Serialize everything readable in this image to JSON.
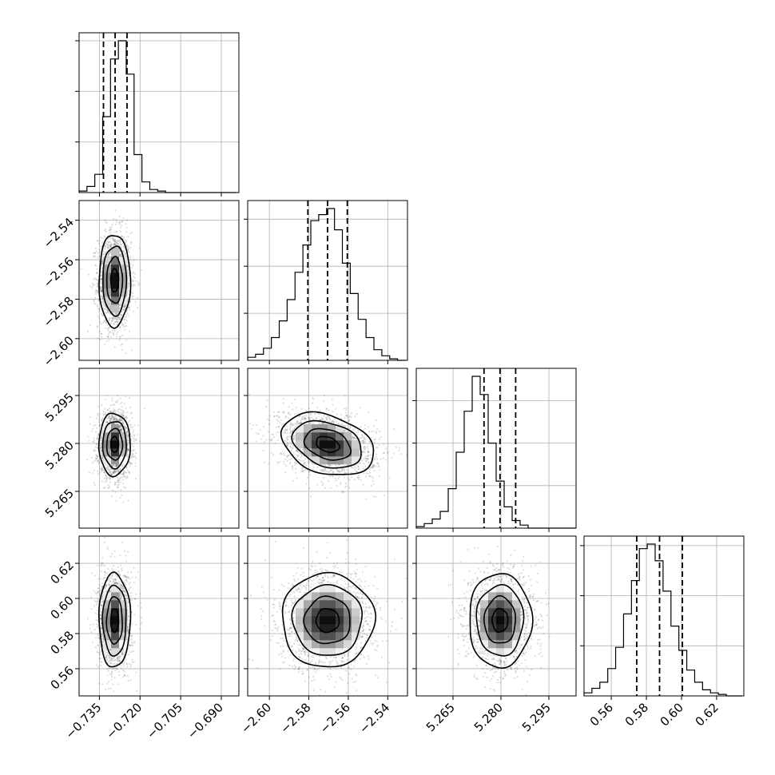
{
  "chart_data": {
    "type": "corner",
    "title": "",
    "grid": true,
    "parameters": [
      {
        "index": 0,
        "range": [
          -0.7425,
          -0.6835
        ],
        "ticks": [
          {
            "v": -0.735,
            "label": "−0.735"
          },
          {
            "v": -0.72,
            "label": "−0.720"
          },
          {
            "v": -0.705,
            "label": "−0.705"
          },
          {
            "v": -0.69,
            "label": "−0.690"
          }
        ],
        "quantiles": [
          -0.7335,
          -0.7292,
          -0.7248
        ],
        "hist": {
          "start": -0.7425,
          "step": 0.0029,
          "counts": [
            1,
            4,
            12,
            50,
            88,
            100,
            78,
            25,
            7,
            2,
            1,
            0,
            0,
            0,
            0,
            0,
            0,
            0,
            0,
            0
          ]
        },
        "hist_ticks": [
          0.333,
          0.667,
          1.0
        ]
      },
      {
        "index": 1,
        "range": [
          -2.611,
          -2.53
        ],
        "ticks": [
          {
            "v": -2.6,
            "label": "−2.60"
          },
          {
            "v": -2.58,
            "label": "−2.58"
          },
          {
            "v": -2.56,
            "label": "−2.56"
          },
          {
            "v": -2.54,
            "label": "−2.54"
          }
        ],
        "quantiles": [
          -2.5805,
          -2.5705,
          -2.5605
        ],
        "hist": {
          "start": -2.611,
          "step": 0.004,
          "counts": [
            2,
            4,
            8,
            15,
            26,
            40,
            58,
            76,
            92,
            96,
            100,
            86,
            64,
            44,
            27,
            15,
            7,
            3,
            1,
            0
          ]
        },
        "hist_ticks": [
          0.31,
          0.62,
          0.93
        ]
      },
      {
        "index": 2,
        "range": [
          5.2535,
          5.3035
        ],
        "ticks": [
          {
            "v": 5.265,
            "label": "5.265"
          },
          {
            "v": 5.28,
            "label": "5.280"
          },
          {
            "v": 5.295,
            "label": "5.295"
          }
        ],
        "quantiles": [
          5.2747,
          5.2797,
          5.2846
        ],
        "hist": {
          "start": 5.2535,
          "step": 0.0025,
          "counts": [
            1,
            3,
            6,
            11,
            26,
            50,
            77,
            100,
            88,
            56,
            31,
            14,
            5,
            2,
            0,
            0,
            0,
            0,
            0,
            0
          ]
        },
        "hist_ticks": [
          0.28,
          0.56,
          0.84
        ]
      },
      {
        "index": 3,
        "range": [
          0.5445,
          0.6355
        ],
        "ticks": [
          {
            "v": 0.56,
            "label": "0.56"
          },
          {
            "v": 0.58,
            "label": "0.58"
          },
          {
            "v": 0.6,
            "label": "0.60"
          },
          {
            "v": 0.62,
            "label": "0.62"
          }
        ],
        "quantiles": [
          0.5745,
          0.5875,
          0.6005
        ],
        "hist": {
          "start": 0.5445,
          "step": 0.0045,
          "counts": [
            2,
            5,
            9,
            18,
            32,
            54,
            76,
            97,
            100,
            89,
            69,
            46,
            30,
            17,
            9,
            4,
            2,
            1,
            0,
            0
          ]
        },
        "hist_ticks": [
          0.33,
          0.66,
          0.99
        ]
      }
    ],
    "pairs": [
      {
        "x": 0,
        "y": 1,
        "mean": [
          -0.7294,
          -2.5705
        ],
        "sd": [
          0.0029,
          0.0117
        ],
        "rho": 0.0
      },
      {
        "x": 0,
        "y": 2,
        "mean": [
          -0.7294,
          5.2797
        ],
        "sd": [
          0.0029,
          0.0049
        ],
        "rho": 0.0
      },
      {
        "x": 1,
        "y": 2,
        "mean": [
          -2.5705,
          5.2797
        ],
        "sd": [
          0.0117,
          0.0049
        ],
        "rho": -0.3
      },
      {
        "x": 0,
        "y": 3,
        "mean": [
          -0.7294,
          0.5875
        ],
        "sd": [
          0.0029,
          0.0134
        ],
        "rho": 0.0
      },
      {
        "x": 1,
        "y": 3,
        "mean": [
          -2.5705,
          0.5875
        ],
        "sd": [
          0.0117,
          0.0134
        ],
        "rho": 0.0
      },
      {
        "x": 2,
        "y": 3,
        "mean": [
          5.2797,
          0.5875
        ],
        "sd": [
          0.0049,
          0.0134
        ],
        "rho": 0.0
      }
    ],
    "contour_levels_sigma": [
      0.5,
      1.0,
      1.5,
      2.0
    ]
  }
}
